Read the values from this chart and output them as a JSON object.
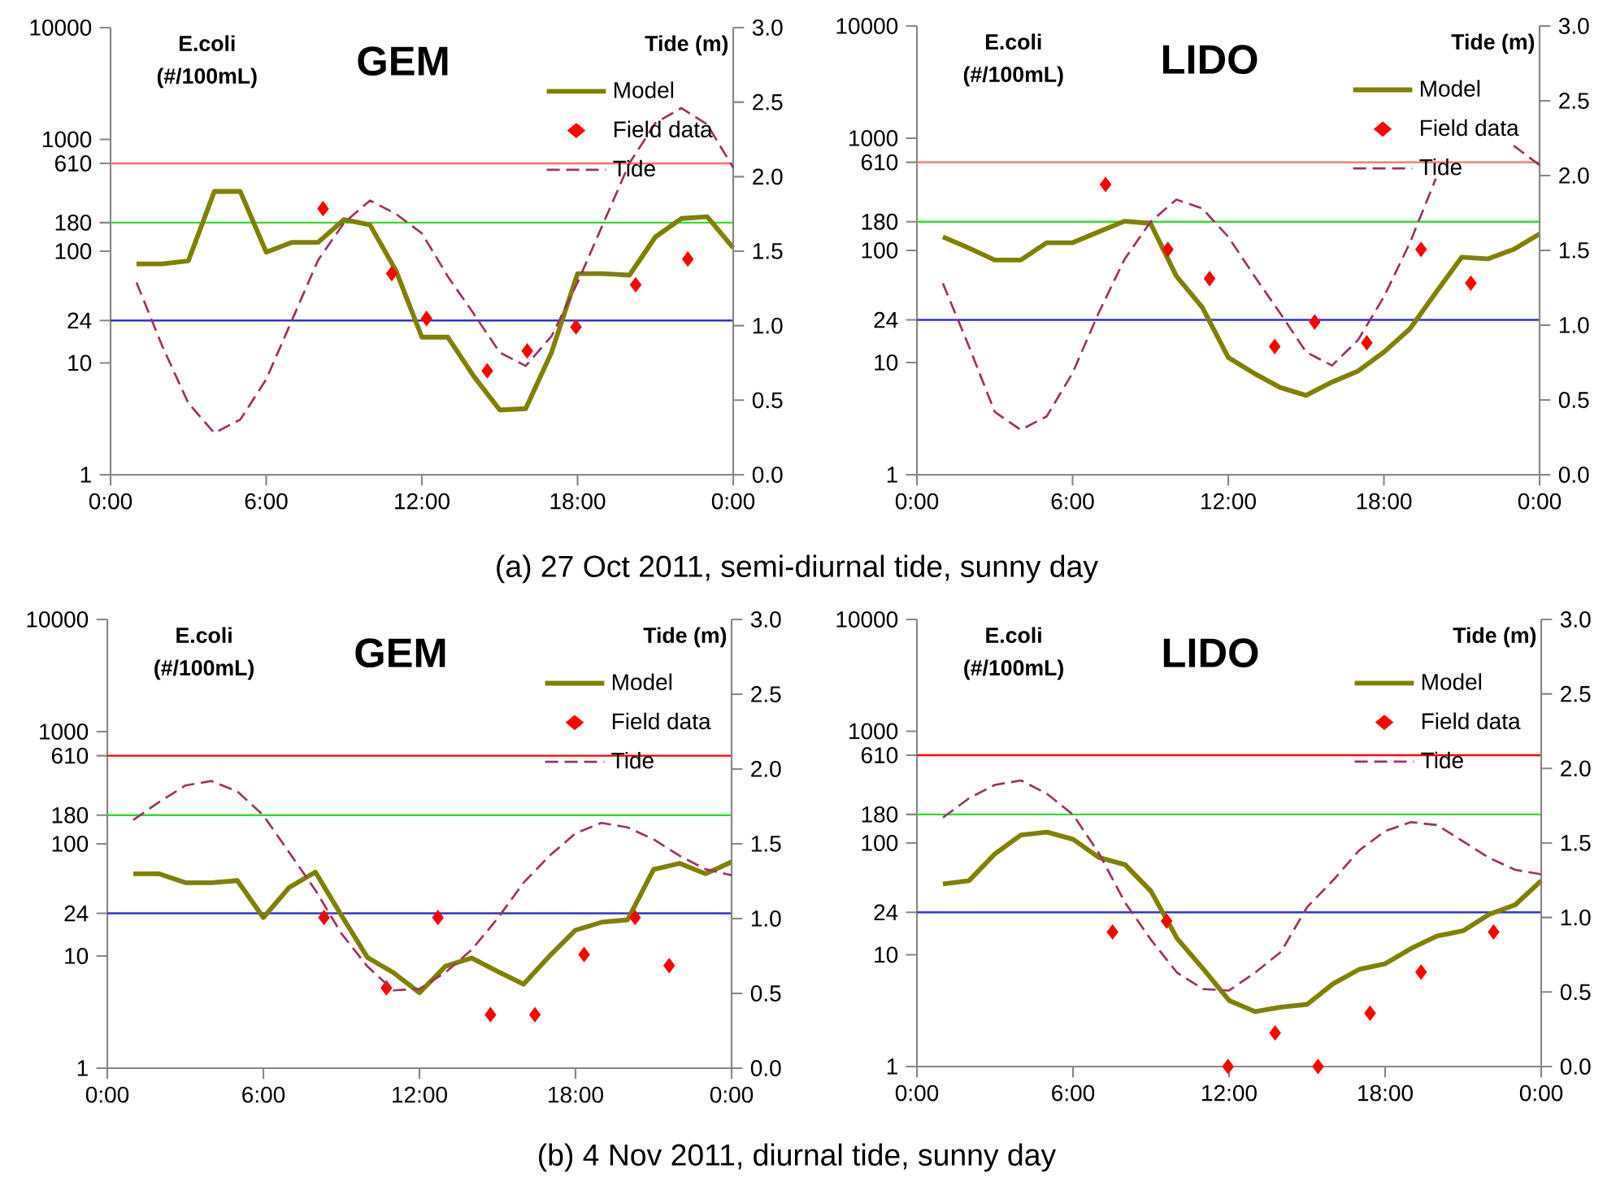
{
  "chart_data": [
    {
      "type": "line",
      "title": "GEM",
      "ylabel": "E.coli (#/100mL)",
      "y2label": "Tide (m)",
      "log": "y",
      "legend": "top right",
      "annotations": [
        "(a) 27 Oct 2011, semi-diurnal tide, sunny day"
      ],
      "xlim": [
        0,
        24
      ],
      "xticks": [
        {
          "value": 0,
          "label": "0:00"
        },
        {
          "value": 6,
          "label": "6:00"
        },
        {
          "value": 12,
          "label": "12:00"
        },
        {
          "value": 18,
          "label": "18:00"
        },
        {
          "value": 24,
          "label": "0:00"
        }
      ],
      "ylim": [
        1,
        10000
      ],
      "yticks": [
        1,
        10,
        24,
        100,
        180,
        610,
        1000,
        10000
      ],
      "y2lim": [
        0,
        3
      ],
      "y2ticks": [
        {
          "value": 0,
          "label": "0.0"
        },
        {
          "value": 0.5,
          "label": "0.5"
        },
        {
          "value": 1,
          "label": "1.0"
        },
        {
          "value": 1.5,
          "label": "1.5"
        },
        {
          "value": 2,
          "label": "2.0"
        },
        {
          "value": 2.5,
          "label": "2.5"
        },
        {
          "value": 3,
          "label": "3.0"
        }
      ],
      "ref_lines": [
        {
          "axis": "y",
          "value": 610,
          "color": "#ff7070"
        },
        {
          "axis": "y",
          "value": 180,
          "color": "#33dd33"
        },
        {
          "axis": "y",
          "value": 24,
          "color": "#3333cc"
        }
      ],
      "series": [
        {
          "name": "Model",
          "type": "line",
          "color": "#808000",
          "x": [
            1,
            2,
            3,
            4,
            5,
            6,
            7,
            8,
            9,
            10,
            11,
            12,
            13,
            14,
            15,
            16,
            17,
            18,
            19,
            20,
            21,
            22,
            23,
            24
          ],
          "values": [
            77,
            77,
            82,
            342,
            342,
            98,
            120,
            120,
            192,
            172,
            67,
            17,
            17,
            7.6,
            3.8,
            3.9,
            12.5,
            63,
            63,
            61,
            134,
            196,
            203,
            107
          ]
        },
        {
          "name": "Field data",
          "type": "scatter",
          "marker": "diamond",
          "color": "#ff0000",
          "x": [
            8.19,
            10.84,
            12.18,
            14.52,
            16.06,
            17.94,
            20.24,
            22.25
          ],
          "values": [
            240,
            63,
            25,
            8.5,
            12.8,
            21,
            50,
            85
          ]
        },
        {
          "name": "Tide",
          "type": "line",
          "axis": "y2",
          "line_style": "dashed",
          "color": "#993366",
          "x": [
            1,
            2,
            3,
            4,
            5,
            6,
            7,
            8,
            9,
            10,
            11,
            12,
            13,
            14,
            15,
            16,
            17,
            18,
            19,
            20,
            21,
            22,
            23,
            24
          ],
          "values": [
            1.29,
            0.86,
            0.48,
            0.28,
            0.37,
            0.64,
            1.04,
            1.44,
            1.69,
            1.84,
            1.75,
            1.62,
            1.33,
            1.08,
            0.82,
            0.73,
            0.93,
            1.29,
            1.69,
            2.09,
            2.36,
            2.46,
            2.35,
            2.06
          ]
        }
      ]
    },
    {
      "type": "line",
      "title": "LIDO",
      "ylabel": "E.coli (#/100mL)",
      "y2label": "Tide (m)",
      "log": "y",
      "legend": "top right",
      "xlim": [
        0,
        24
      ],
      "xticks": [
        {
          "value": 0,
          "label": "0:00"
        },
        {
          "value": 6,
          "label": "6:00"
        },
        {
          "value": 12,
          "label": "12:00"
        },
        {
          "value": 18,
          "label": "18:00"
        },
        {
          "value": 24,
          "label": "0:00"
        }
      ],
      "ylim": [
        1,
        10000
      ],
      "yticks": [
        1,
        10,
        24,
        100,
        180,
        610,
        1000,
        10000
      ],
      "y2lim": [
        0,
        3
      ],
      "y2ticks": [
        {
          "value": 0,
          "label": "0.0"
        },
        {
          "value": 0.5,
          "label": "0.5"
        },
        {
          "value": 1,
          "label": "1.0"
        },
        {
          "value": 1.5,
          "label": "1.5"
        },
        {
          "value": 2,
          "label": "2.0"
        },
        {
          "value": 2.5,
          "label": "2.5"
        },
        {
          "value": 3,
          "label": "3.0"
        }
      ],
      "ref_lines": [
        {
          "axis": "y",
          "value": 610,
          "color": "#ff7070"
        },
        {
          "axis": "y",
          "value": 180,
          "color": "#33dd33"
        },
        {
          "axis": "y",
          "value": 24,
          "color": "#3333cc"
        }
      ],
      "series": [
        {
          "name": "Model",
          "type": "line",
          "color": "#808000",
          "x": [
            1,
            2,
            3,
            4,
            5,
            6,
            7,
            8,
            9,
            10,
            11,
            12,
            13,
            14,
            15,
            16,
            17,
            18,
            19,
            20,
            21,
            22,
            23,
            24
          ],
          "values": [
            132,
            105,
            82,
            82,
            117,
            117,
            146,
            182,
            174,
            59,
            31,
            11.1,
            8.0,
            6.0,
            5.1,
            6.7,
            8.4,
            12.4,
            20,
            42,
            87,
            84,
            102,
            140
          ]
        },
        {
          "name": "Field data",
          "type": "scatter",
          "marker": "diamond",
          "color": "#ff0000",
          "x": [
            7.27,
            9.67,
            11.28,
            13.79,
            15.33,
            17.34,
            19.43,
            21.35
          ],
          "values": [
            387,
            102,
            56,
            13.9,
            23,
            15,
            102,
            51
          ]
        },
        {
          "name": "Tide",
          "type": "line",
          "axis": "y2",
          "line_style": "dashed",
          "color": "#993366",
          "x": [
            1,
            2,
            3,
            4,
            5,
            6,
            7,
            8,
            9,
            10,
            11,
            12,
            13,
            14,
            15,
            16,
            17,
            18,
            19,
            20,
            21,
            22,
            23,
            24
          ],
          "values": [
            1.28,
            0.86,
            0.42,
            0.3,
            0.39,
            0.68,
            1.08,
            1.44,
            1.69,
            1.84,
            1.78,
            1.59,
            1.33,
            1.08,
            0.82,
            0.73,
            0.9,
            1.19,
            1.55,
            1.98,
            null,
            null,
            2.2,
            2.07
          ]
        }
      ]
    },
    {
      "type": "line",
      "title": "GEM",
      "ylabel": "E.coli (#/100mL)",
      "y2label": "Tide (m)",
      "log": "y",
      "legend": "top right",
      "annotations": [
        "(b) 4 Nov 2011, diurnal tide, sunny day"
      ],
      "xlim": [
        0,
        24
      ],
      "xticks": [
        {
          "value": 0,
          "label": "0:00"
        },
        {
          "value": 6,
          "label": "6:00"
        },
        {
          "value": 12,
          "label": "12:00"
        },
        {
          "value": 18,
          "label": "18:00"
        },
        {
          "value": 24,
          "label": "0:00"
        }
      ],
      "ylim": [
        1,
        10000
      ],
      "yticks": [
        1,
        10,
        24,
        100,
        180,
        610,
        1000,
        10000
      ],
      "y2lim": [
        0,
        3
      ],
      "y2ticks": [
        {
          "value": 0,
          "label": "0.0"
        },
        {
          "value": 0.5,
          "label": "0.5"
        },
        {
          "value": 1,
          "label": "1.0"
        },
        {
          "value": 1.5,
          "label": "1.5"
        },
        {
          "value": 2,
          "label": "2.0"
        },
        {
          "value": 2.5,
          "label": "2.5"
        },
        {
          "value": 3,
          "label": "3.0"
        }
      ],
      "ref_lines": [
        {
          "axis": "y",
          "value": 610,
          "color": "#ff0000"
        },
        {
          "axis": "y",
          "value": 180,
          "color": "#33dd33"
        },
        {
          "axis": "y",
          "value": 24,
          "color": "#3333cc"
        }
      ],
      "series": [
        {
          "name": "Model",
          "type": "line",
          "color": "#808000",
          "x": [
            1,
            2,
            3,
            4,
            5,
            6,
            7,
            8,
            9,
            10,
            11,
            12,
            13,
            14,
            15,
            16,
            17,
            18,
            19,
            20,
            21,
            22,
            23,
            24
          ],
          "values": [
            54,
            54,
            45,
            45,
            47,
            22,
            41,
            56,
            23,
            9.7,
            7.1,
            4.7,
            8.1,
            9.6,
            7.3,
            5.6,
            10,
            17,
            20,
            21,
            59,
            67,
            54,
            69
          ]
        },
        {
          "name": "Field data",
          "type": "scatter",
          "marker": "diamond",
          "color": "#ff0000",
          "x": [
            8.33,
            10.73,
            12.71,
            14.73,
            16.44,
            18.33,
            20.29,
            21.6
          ],
          "values": [
            22,
            5.2,
            22,
            3.0,
            3.0,
            10.3,
            22,
            8.2
          ]
        },
        {
          "name": "Tide",
          "type": "line",
          "axis": "y2",
          "line_style": "dashed",
          "color": "#993366",
          "x": [
            1,
            2,
            3,
            4,
            5,
            6,
            7,
            8,
            9,
            10,
            11,
            12,
            13,
            14,
            15,
            16,
            17,
            18,
            19,
            20,
            21,
            22,
            23,
            24
          ],
          "values": [
            1.66,
            1.78,
            1.89,
            1.92,
            1.85,
            1.69,
            1.44,
            1.19,
            0.9,
            0.68,
            0.52,
            0.53,
            0.64,
            0.79,
            1.0,
            1.24,
            1.42,
            1.57,
            1.64,
            1.61,
            1.53,
            1.42,
            1.33,
            1.29
          ]
        }
      ]
    },
    {
      "type": "line",
      "title": "LIDO",
      "ylabel": "E.coli (#/100mL)",
      "y2label": "Tide (m)",
      "log": "y",
      "legend": "top right",
      "xlim": [
        0,
        24
      ],
      "xticks": [
        {
          "value": 0,
          "label": "0:00"
        },
        {
          "value": 6,
          "label": "6:00"
        },
        {
          "value": 12,
          "label": "12:00"
        },
        {
          "value": 18,
          "label": "18:00"
        },
        {
          "value": 24,
          "label": "0:00"
        }
      ],
      "ylim": [
        1,
        10000
      ],
      "yticks": [
        1,
        10,
        24,
        100,
        180,
        610,
        1000,
        10000
      ],
      "y2lim": [
        0,
        3
      ],
      "y2ticks": [
        {
          "value": 0,
          "label": "0.0"
        },
        {
          "value": 0.5,
          "label": "0.5"
        },
        {
          "value": 1,
          "label": "1.0"
        },
        {
          "value": 1.5,
          "label": "1.5"
        },
        {
          "value": 2,
          "label": "2.0"
        },
        {
          "value": 2.5,
          "label": "2.5"
        },
        {
          "value": 3,
          "label": "3.0"
        }
      ],
      "ref_lines": [
        {
          "axis": "y",
          "value": 610,
          "color": "#ff0000"
        },
        {
          "axis": "y",
          "value": 180,
          "color": "#33dd33"
        },
        {
          "axis": "y",
          "value": 24,
          "color": "#3333cc"
        }
      ],
      "series": [
        {
          "name": "Model",
          "type": "line",
          "color": "#808000",
          "x": [
            1,
            2,
            3,
            4,
            5,
            6,
            7,
            8,
            9,
            10,
            11,
            12,
            13,
            14,
            15,
            16,
            17,
            18,
            19,
            20,
            21,
            22,
            23,
            24
          ],
          "values": [
            43,
            46,
            80,
            118,
            125,
            108,
            74,
            64,
            37,
            14,
            7.5,
            3.9,
            3.1,
            3.4,
            3.6,
            5.5,
            7.4,
            8.3,
            11.4,
            14.7,
            16.4,
            23,
            28,
            46
          ]
        },
        {
          "name": "Field data",
          "type": "scatter",
          "marker": "diamond",
          "color": "#ff0000",
          "x": [
            7.52,
            9.6,
            11.96,
            13.77,
            15.42,
            17.42,
            19.38,
            22.17
          ],
          "values": [
            16,
            20,
            1,
            2.0,
            1,
            3.0,
            7.0,
            16
          ]
        },
        {
          "name": "Tide",
          "type": "line",
          "axis": "y2",
          "line_style": "dashed",
          "color": "#993366",
          "x": [
            1,
            2,
            3,
            4,
            5,
            6,
            7,
            8,
            9,
            10,
            11,
            12,
            13,
            14,
            15,
            16,
            17,
            18,
            19,
            20,
            21,
            22,
            23,
            24
          ],
          "values": [
            1.67,
            1.8,
            1.89,
            1.92,
            1.83,
            1.69,
            1.43,
            1.1,
            0.85,
            0.63,
            0.52,
            0.51,
            0.63,
            0.77,
            1.07,
            1.25,
            1.45,
            1.58,
            1.64,
            1.62,
            1.51,
            1.4,
            1.32,
            1.29
          ]
        }
      ]
    }
  ]
}
